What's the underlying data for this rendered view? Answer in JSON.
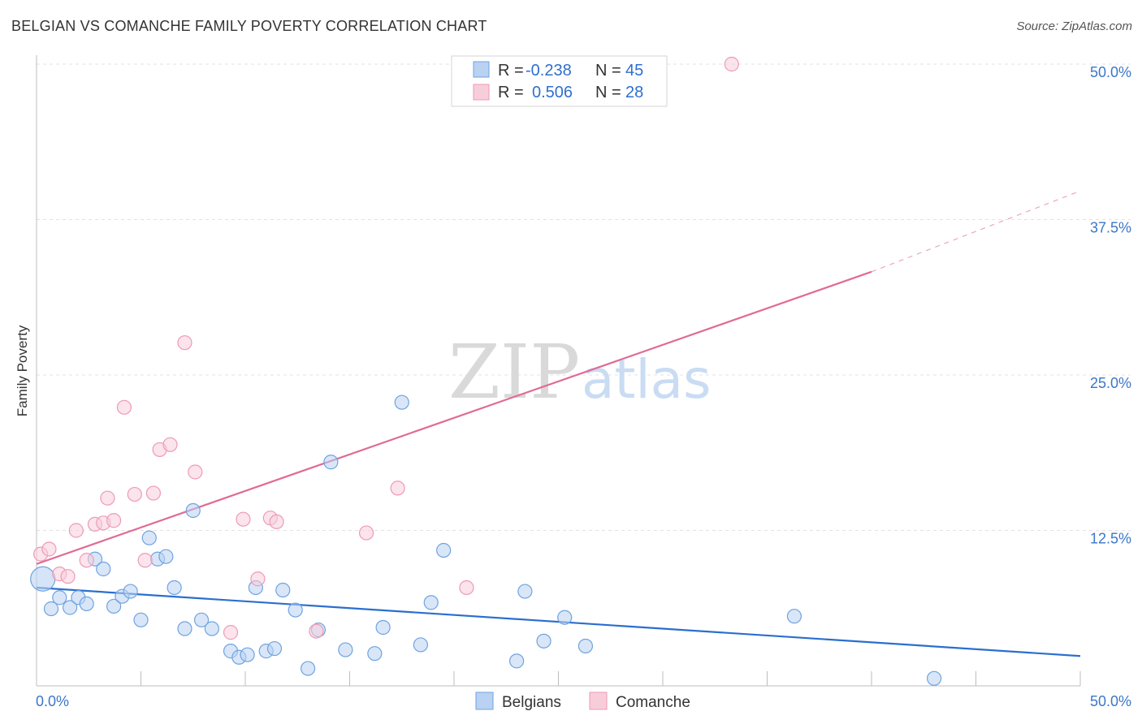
{
  "chart_data": {
    "type": "scatter",
    "title": "BELGIAN VS COMANCHE FAMILY POVERTY CORRELATION CHART",
    "source": "Source: ZipAtlas.com",
    "xlabel": "",
    "ylabel": "Family Poverty",
    "xlim": [
      0,
      50
    ],
    "ylim": [
      0,
      50
    ],
    "x_tick_labels": [
      "0.0%",
      "50.0%"
    ],
    "y_ticks": [
      {
        "value": 12.5,
        "label": "12.5%"
      },
      {
        "value": 25,
        "label": "25.0%"
      },
      {
        "value": 37.5,
        "label": "37.5%"
      },
      {
        "value": 50,
        "label": "50.0%"
      }
    ],
    "watermark": {
      "part1": "ZIP",
      "part2": "atlas"
    },
    "legend": [
      {
        "series": "Belgians",
        "r_label": "R =",
        "r_value": "-0.238",
        "n_label": "N =",
        "n_value": "45"
      },
      {
        "series": "Comanche",
        "r_label": "R =",
        "r_value": "0.506",
        "n_label": "N =",
        "n_value": "28"
      }
    ],
    "series": [
      {
        "name": "Belgians",
        "color": "#6fa3e0",
        "fill": "#b9d2f2",
        "line_color": "#2a6fce",
        "trend": {
          "x0": 0,
          "y0": 7.9,
          "x1": 50,
          "y1": 2.4
        },
        "points": [
          {
            "x": 0.3,
            "y": 8.6,
            "big": true
          },
          {
            "x": 0.7,
            "y": 6.2
          },
          {
            "x": 1.1,
            "y": 7.1
          },
          {
            "x": 1.6,
            "y": 6.3
          },
          {
            "x": 2.0,
            "y": 7.1
          },
          {
            "x": 2.4,
            "y": 6.6
          },
          {
            "x": 2.8,
            "y": 10.2
          },
          {
            "x": 3.2,
            "y": 9.4
          },
          {
            "x": 3.7,
            "y": 6.4
          },
          {
            "x": 4.1,
            "y": 7.2
          },
          {
            "x": 4.5,
            "y": 7.6
          },
          {
            "x": 5.0,
            "y": 5.3
          },
          {
            "x": 5.4,
            "y": 11.9
          },
          {
            "x": 5.8,
            "y": 10.2
          },
          {
            "x": 6.2,
            "y": 10.4
          },
          {
            "x": 6.6,
            "y": 7.9
          },
          {
            "x": 7.1,
            "y": 4.6
          },
          {
            "x": 7.5,
            "y": 14.1
          },
          {
            "x": 7.9,
            "y": 5.3
          },
          {
            "x": 8.4,
            "y": 4.6
          },
          {
            "x": 9.3,
            "y": 2.8
          },
          {
            "x": 9.7,
            "y": 2.3
          },
          {
            "x": 10.1,
            "y": 2.5
          },
          {
            "x": 10.5,
            "y": 7.9
          },
          {
            "x": 11.0,
            "y": 2.8
          },
          {
            "x": 11.4,
            "y": 3.0
          },
          {
            "x": 11.8,
            "y": 7.7
          },
          {
            "x": 12.4,
            "y": 6.1
          },
          {
            "x": 13.0,
            "y": 1.4
          },
          {
            "x": 13.5,
            "y": 4.5
          },
          {
            "x": 14.1,
            "y": 18.0
          },
          {
            "x": 14.8,
            "y": 2.9
          },
          {
            "x": 16.2,
            "y": 2.6
          },
          {
            "x": 16.6,
            "y": 4.7
          },
          {
            "x": 17.5,
            "y": 22.8
          },
          {
            "x": 18.4,
            "y": 3.3
          },
          {
            "x": 18.9,
            "y": 6.7
          },
          {
            "x": 19.5,
            "y": 10.9
          },
          {
            "x": 23.0,
            "y": 2.0
          },
          {
            "x": 23.4,
            "y": 7.6
          },
          {
            "x": 24.3,
            "y": 3.6
          },
          {
            "x": 25.3,
            "y": 5.5
          },
          {
            "x": 26.3,
            "y": 3.2
          },
          {
            "x": 36.3,
            "y": 5.6
          },
          {
            "x": 43.0,
            "y": 0.6
          }
        ]
      },
      {
        "name": "Comanche",
        "color": "#ee9ab6",
        "fill": "#f8cdda",
        "line_color": "#e06b94",
        "trend": {
          "x0": 0,
          "y0": 9.8,
          "x1": 40,
          "y1": 33.3
        },
        "trend_dashed": {
          "x0": 40,
          "y0": 33.3,
          "x1": 50,
          "y1": 39.8
        },
        "points": [
          {
            "x": 0.2,
            "y": 10.6
          },
          {
            "x": 0.6,
            "y": 11.0
          },
          {
            "x": 1.1,
            "y": 9.0
          },
          {
            "x": 1.5,
            "y": 8.8
          },
          {
            "x": 1.9,
            "y": 12.5
          },
          {
            "x": 2.4,
            "y": 10.1
          },
          {
            "x": 2.8,
            "y": 13.0
          },
          {
            "x": 3.2,
            "y": 13.1
          },
          {
            "x": 3.4,
            "y": 15.1
          },
          {
            "x": 3.7,
            "y": 13.3
          },
          {
            "x": 4.2,
            "y": 22.4
          },
          {
            "x": 4.7,
            "y": 15.4
          },
          {
            "x": 5.2,
            "y": 10.1
          },
          {
            "x": 5.6,
            "y": 15.5
          },
          {
            "x": 5.9,
            "y": 19.0
          },
          {
            "x": 6.4,
            "y": 19.4
          },
          {
            "x": 7.1,
            "y": 27.6
          },
          {
            "x": 7.6,
            "y": 17.2
          },
          {
            "x": 9.3,
            "y": 4.3
          },
          {
            "x": 9.9,
            "y": 13.4
          },
          {
            "x": 10.6,
            "y": 8.6
          },
          {
            "x": 11.2,
            "y": 13.5
          },
          {
            "x": 11.5,
            "y": 13.2
          },
          {
            "x": 13.4,
            "y": 4.4
          },
          {
            "x": 15.8,
            "y": 12.3
          },
          {
            "x": 17.3,
            "y": 15.9
          },
          {
            "x": 20.6,
            "y": 7.9
          },
          {
            "x": 33.3,
            "y": 50.0
          }
        ]
      }
    ]
  }
}
